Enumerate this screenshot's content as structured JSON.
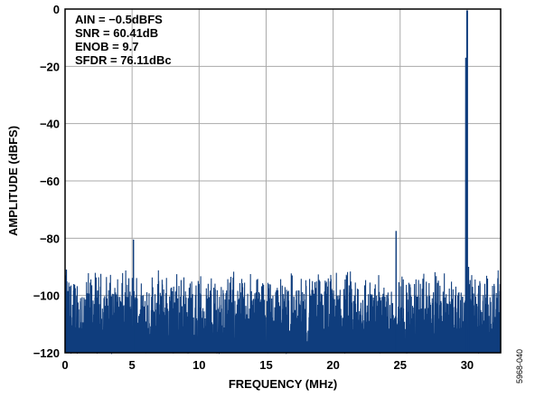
{
  "chart_data": {
    "type": "line",
    "title": "",
    "xlabel": "FREQUENCY (MHz)",
    "ylabel": "AMPLITUDE (dBFS)",
    "xlim": [
      0,
      32.5
    ],
    "ylim": [
      -120,
      0
    ],
    "xticks": [
      0,
      5,
      10,
      15,
      20,
      25,
      30
    ],
    "yticks": [
      0,
      -20,
      -40,
      -60,
      -80,
      -100,
      -120
    ],
    "grid": true,
    "colors": {
      "series": "#0f3d7d",
      "grid": "#a9a9a9",
      "axes": "#000000"
    },
    "annotations": [
      "AIN = −0.5dBFS",
      "SNR = 60.41dB",
      "ENOB = 9.7",
      "SFDR = 76.11dBc"
    ],
    "figure_id": "5968-040",
    "series": [
      {
        "values_description": "FFT spectrum: fundamental near 30 MHz at about -0.5 dBFS, noise floor roughly -120 to -88 dBFS, spurs near 5.1 MHz (-80) and 24.7 MHz (-77.5)",
        "points": [
          [
            0.1,
            -91
          ],
          [
            5.1,
            -80.5
          ],
          [
            24.7,
            -77.5
          ],
          [
            29.9,
            -17
          ],
          [
            30.0,
            -0.5
          ],
          [
            30.1,
            -90
          ],
          [
            32.3,
            -94
          ]
        ]
      }
    ]
  }
}
